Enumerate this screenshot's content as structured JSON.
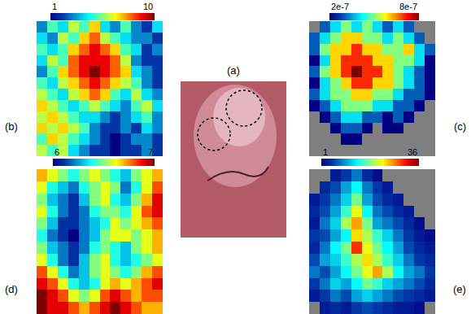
{
  "chart_data": [
    {
      "type": "image",
      "title": "(a)"
    },
    {
      "type": "heatmap",
      "title": "(b)",
      "color": "Jet",
      "tick_labels": false,
      "colorbar": {
        "range": [
          1,
          10
        ],
        "ticks": [
          1,
          10
        ]
      },
      "cells": [
        [
          3,
          5,
          4,
          6,
          5,
          7,
          4,
          3,
          5,
          3,
          2,
          4
        ],
        [
          4,
          3,
          6,
          5,
          7,
          8,
          6,
          5,
          4,
          3,
          3,
          2
        ],
        [
          5,
          4,
          5,
          7,
          8,
          9,
          8,
          7,
          5,
          4,
          2,
          3
        ],
        [
          4,
          6,
          5,
          8,
          9,
          9,
          9,
          8,
          6,
          3,
          2,
          2
        ],
        [
          3,
          5,
          7,
          8,
          9,
          10,
          9,
          8,
          7,
          4,
          3,
          2
        ],
        [
          5,
          4,
          6,
          7,
          8,
          9,
          8,
          7,
          6,
          5,
          3,
          2
        ],
        [
          6,
          5,
          4,
          6,
          7,
          8,
          7,
          5,
          4,
          6,
          4,
          3
        ],
        [
          7,
          6,
          5,
          4,
          5,
          6,
          5,
          4,
          3,
          5,
          6,
          4
        ],
        [
          6,
          7,
          6,
          5,
          4,
          4,
          3,
          2,
          3,
          4,
          5,
          3
        ],
        [
          7,
          6,
          7,
          6,
          5,
          3,
          2,
          2,
          3,
          2,
          4,
          3
        ],
        [
          5,
          7,
          6,
          5,
          4,
          3,
          2,
          1,
          2,
          3,
          3,
          2
        ],
        [
          6,
          5,
          6,
          4,
          3,
          2,
          2,
          1,
          2,
          2,
          3,
          2
        ]
      ]
    },
    {
      "type": "heatmap",
      "title": "(c)",
      "color": "Jet",
      "tick_labels": false,
      "colorbar": {
        "range": [
          2e-07,
          8e-07
        ],
        "ticks": [
          {
            "value": 2e-07,
            "label": "2e-7"
          },
          {
            "value": 8e-07,
            "label": "8e-7"
          }
        ]
      },
      "cells": [
        [
          null,
          3e-07,
          4e-07,
          5e-07,
          4e-07,
          5e-07,
          4e-07,
          3e-07,
          4e-07,
          3e-07,
          null,
          null
        ],
        [
          3e-07,
          4e-07,
          5e-07,
          6e-07,
          6e-07,
          5e-07,
          5e-07,
          4e-07,
          5e-07,
          4e-07,
          3e-07,
          null
        ],
        [
          3e-07,
          5e-07,
          6e-07,
          6e-07,
          7e-07,
          6e-07,
          6e-07,
          5e-07,
          5e-07,
          6e-07,
          4e-07,
          3e-07
        ],
        [
          2e-07,
          4e-07,
          6e-07,
          7e-07,
          7e-07,
          7e-07,
          6e-07,
          6e-07,
          5e-07,
          5e-07,
          4e-07,
          2e-07
        ],
        [
          3e-07,
          5e-07,
          6e-07,
          7e-07,
          8e-07,
          7e-07,
          7e-07,
          6e-07,
          5e-07,
          4e-07,
          3e-07,
          2e-07
        ],
        [
          2e-07,
          4e-07,
          5e-07,
          6e-07,
          7e-07,
          7e-07,
          6e-07,
          6e-07,
          5e-07,
          4e-07,
          3e-07,
          2e-07
        ],
        [
          3e-07,
          4e-07,
          5e-07,
          5e-07,
          6e-07,
          6e-07,
          5e-07,
          5e-07,
          4e-07,
          3e-07,
          3e-07,
          2e-07
        ],
        [
          2e-07,
          3e-07,
          4e-07,
          5e-07,
          5e-07,
          5e-07,
          4e-07,
          4e-07,
          3e-07,
          3e-07,
          2e-07,
          null
        ],
        [
          null,
          2e-07,
          3e-07,
          4e-07,
          4e-07,
          3e-07,
          3e-07,
          2e-07,
          3e-07,
          2e-07,
          null,
          null
        ],
        [
          null,
          null,
          2e-07,
          3e-07,
          3e-07,
          2e-07,
          null,
          2e-07,
          2e-07,
          null,
          null,
          null
        ],
        [
          null,
          null,
          null,
          2e-07,
          2e-07,
          null,
          null,
          null,
          null,
          null,
          null,
          null
        ],
        [
          null,
          null,
          null,
          null,
          null,
          null,
          null,
          null,
          null,
          null,
          null,
          null
        ]
      ]
    },
    {
      "type": "heatmap",
      "title": "(d)",
      "color": "Jet",
      "tick_labels": false,
      "colorbar": {
        "range": [
          6,
          7
        ],
        "ticks": [
          6,
          7
        ]
      },
      "cells": [
        [
          6.7,
          6.6,
          6.5,
          6.4,
          6.5,
          6.6,
          6.5,
          6.4,
          6.3,
          6.5,
          6.6,
          6.7
        ],
        [
          6.6,
          6.4,
          6.3,
          6.2,
          6.4,
          6.5,
          6.6,
          6.5,
          6.2,
          6.4,
          6.6,
          6.8
        ],
        [
          6.5,
          6.3,
          6.2,
          6.1,
          6.3,
          6.5,
          6.6,
          6.4,
          6.3,
          6.5,
          6.7,
          6.9
        ],
        [
          6.6,
          6.4,
          6.2,
          6.1,
          6.2,
          6.4,
          6.5,
          6.5,
          6.4,
          6.6,
          6.8,
          6.9
        ],
        [
          6.5,
          6.3,
          6.1,
          6.1,
          6.2,
          6.3,
          6.4,
          6.6,
          6.5,
          6.6,
          6.7,
          6.8
        ],
        [
          6.4,
          6.2,
          6.1,
          6.0,
          6.2,
          6.3,
          6.5,
          6.6,
          6.6,
          6.5,
          6.6,
          6.7
        ],
        [
          6.5,
          6.3,
          6.2,
          6.1,
          6.2,
          6.4,
          6.5,
          6.4,
          6.3,
          6.5,
          6.6,
          6.7
        ],
        [
          6.6,
          6.4,
          6.2,
          6.1,
          6.3,
          6.5,
          6.6,
          6.4,
          6.3,
          6.4,
          6.5,
          6.6
        ],
        [
          6.8,
          6.6,
          6.4,
          6.2,
          6.3,
          6.5,
          6.6,
          6.5,
          6.4,
          6.5,
          6.7,
          6.8
        ],
        [
          6.9,
          6.8,
          6.6,
          6.4,
          6.3,
          6.4,
          6.6,
          6.7,
          6.6,
          6.7,
          6.8,
          6.9
        ],
        [
          7.0,
          6.9,
          6.8,
          6.6,
          6.5,
          6.6,
          6.8,
          6.9,
          6.8,
          6.7,
          6.8,
          6.8
        ],
        [
          7.0,
          6.9,
          6.9,
          6.8,
          6.7,
          6.8,
          6.9,
          7.0,
          6.9,
          6.8,
          6.7,
          6.7
        ]
      ]
    },
    {
      "type": "heatmap",
      "title": "(e)",
      "color": "Jet",
      "tick_labels": false,
      "colorbar": {
        "range": [
          1,
          36
        ],
        "ticks": [
          1,
          36
        ]
      },
      "cells": [
        [
          null,
          null,
          3,
          5,
          8,
          4,
          2,
          null,
          null,
          null,
          null,
          null
        ],
        [
          null,
          4,
          6,
          10,
          14,
          8,
          5,
          3,
          null,
          null,
          null,
          null
        ],
        [
          3,
          5,
          8,
          12,
          18,
          10,
          6,
          4,
          3,
          null,
          null,
          null
        ],
        [
          4,
          6,
          10,
          16,
          22,
          14,
          8,
          6,
          4,
          3,
          null,
          null
        ],
        [
          3,
          8,
          12,
          20,
          26,
          18,
          10,
          8,
          6,
          4,
          2,
          null
        ],
        [
          5,
          6,
          10,
          14,
          24,
          20,
          16,
          12,
          8,
          5,
          3,
          2
        ],
        [
          4,
          8,
          14,
          18,
          30,
          22,
          18,
          14,
          10,
          6,
          4,
          3
        ],
        [
          6,
          10,
          12,
          16,
          20,
          24,
          20,
          16,
          12,
          8,
          5,
          4
        ],
        [
          8,
          6,
          10,
          14,
          18,
          22,
          26,
          20,
          14,
          10,
          8,
          5
        ],
        [
          5,
          8,
          12,
          10,
          14,
          18,
          16,
          12,
          10,
          8,
          6,
          4
        ],
        [
          3,
          5,
          8,
          6,
          10,
          12,
          10,
          8,
          6,
          5,
          4,
          3
        ],
        [
          null,
          3,
          4,
          3,
          5,
          6,
          5,
          4,
          3,
          3,
          2,
          null
        ]
      ]
    }
  ]
}
